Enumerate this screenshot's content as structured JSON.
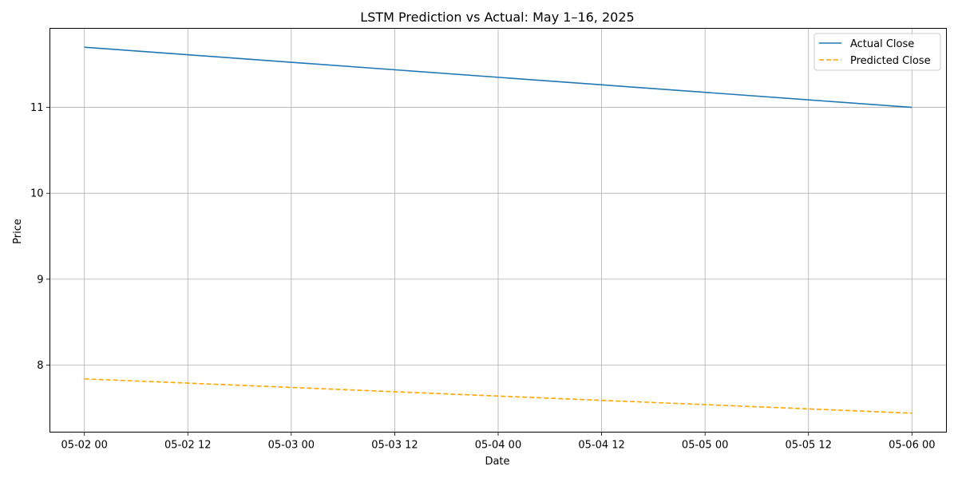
{
  "chart_data": {
    "type": "line",
    "title": "LSTM Prediction vs Actual: May 1–16, 2025",
    "xlabel": "Date",
    "ylabel": "Price",
    "x_ticks": [
      "05-02 00",
      "05-02 12",
      "05-03 00",
      "05-03 12",
      "05-04 00",
      "05-04 12",
      "05-05 00",
      "05-05 12",
      "05-06 00"
    ],
    "y_ticks": [
      8,
      9,
      10,
      11
    ],
    "xlim": [
      "2025-05-01 20:00",
      "2025-05-06 04:00"
    ],
    "ylim": [
      7.22,
      11.92
    ],
    "grid": true,
    "legend_position": "top-right",
    "x": [
      "2025-05-02",
      "2025-05-06"
    ],
    "series": [
      {
        "name": "Actual Close",
        "values": [
          11.7,
          11.0
        ],
        "color": "#1f77b4",
        "style": "solid"
      },
      {
        "name": "Predicted Close",
        "values": [
          7.84,
          7.44
        ],
        "color": "#ffa500",
        "style": "dashed"
      }
    ]
  }
}
